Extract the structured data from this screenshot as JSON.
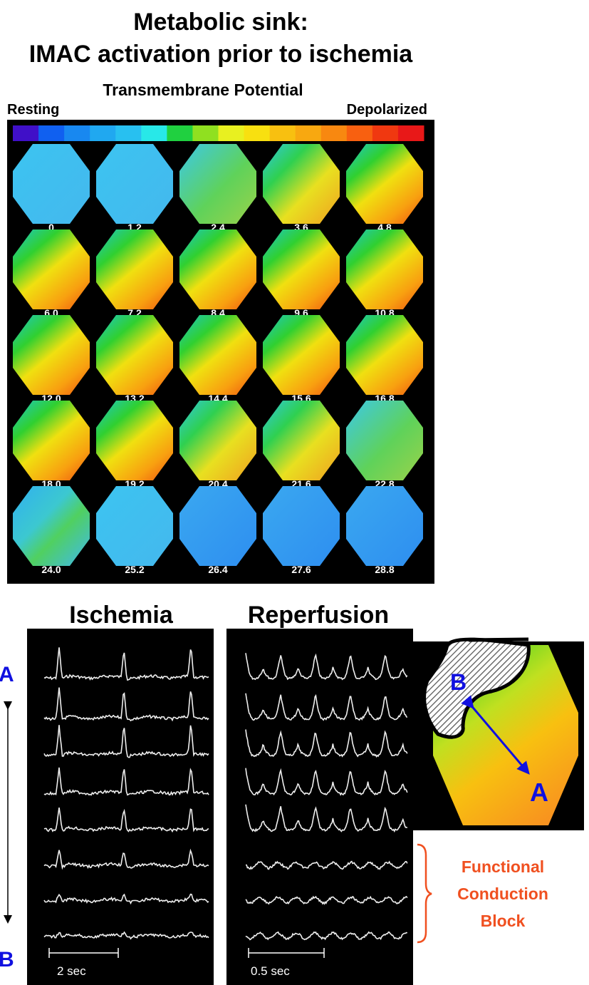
{
  "header": {
    "title": [
      "Metabolic sink:",
      "IMAC activation prior to ischemia"
    ]
  },
  "colorbar": {
    "title": "Transmembrane Potential",
    "left": "Resting",
    "right": "Depolarized"
  },
  "frames": {
    "labels": [
      "0",
      "1.2",
      "2.4",
      "3.6",
      "4.8",
      "6.0",
      "7.2",
      "8.4",
      "9.6",
      "10.8",
      "12.0",
      "13.2",
      "14.4",
      "15.6",
      "16.8",
      "18.0",
      "19.2",
      "20.4",
      "21.6",
      "22.8",
      "24.0",
      "25.2",
      "26.4",
      "27.6",
      "28.8"
    ]
  },
  "traces": {
    "panels": [
      {
        "title": "Ischemia",
        "scale": "2 sec"
      },
      {
        "title": "Reperfusion",
        "scale": "0.5 sec"
      }
    ],
    "site_top": "A",
    "site_bottom": "B"
  },
  "map": {
    "label_b": "B",
    "label_a": "A"
  },
  "annotation": [
    "Functional",
    "Conduction",
    "Block"
  ]
}
